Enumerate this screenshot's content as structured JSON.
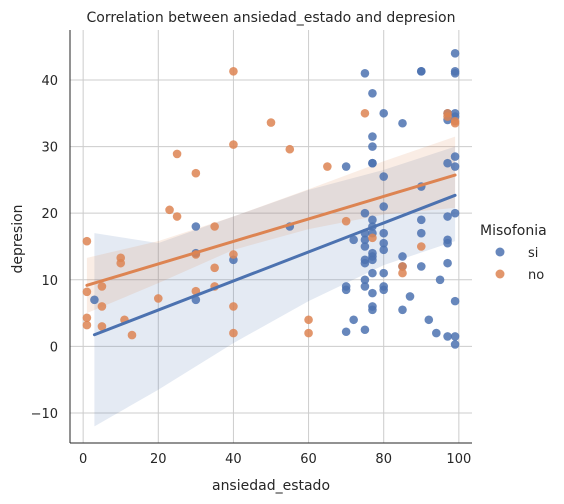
{
  "chart_data": {
    "type": "scatter",
    "title": "Correlation between ansiedad_estado and depresion",
    "xlabel": "ansiedad_estado",
    "ylabel": "depresion",
    "xlim": [
      -3.5,
      103.5
    ],
    "ylim": [
      -14.5,
      47.5
    ],
    "xticks": [
      0,
      20,
      40,
      60,
      80,
      100
    ],
    "yticks": [
      -10,
      0,
      10,
      20,
      30,
      40
    ],
    "grid": true,
    "legend": {
      "title": "Misofonia",
      "placement": "right"
    },
    "series": [
      {
        "name": "si",
        "color": "#4c72b0",
        "points": [
          [
            3,
            7
          ],
          [
            30,
            18
          ],
          [
            30,
            14
          ],
          [
            30,
            7
          ],
          [
            40,
            13
          ],
          [
            55,
            18
          ],
          [
            70,
            27
          ],
          [
            70,
            9
          ],
          [
            70,
            8.5
          ],
          [
            70,
            2.2
          ],
          [
            72,
            4
          ],
          [
            72,
            16
          ],
          [
            75,
            41
          ],
          [
            75,
            20
          ],
          [
            75,
            17
          ],
          [
            75,
            16
          ],
          [
            75,
            15
          ],
          [
            75,
            13
          ],
          [
            75,
            12.5
          ],
          [
            75,
            10
          ],
          [
            75,
            9
          ],
          [
            75,
            2.5
          ],
          [
            77,
            38
          ],
          [
            77,
            31.5
          ],
          [
            77,
            30
          ],
          [
            77,
            27.5
          ],
          [
            77,
            27.5
          ],
          [
            77,
            19
          ],
          [
            77,
            18
          ],
          [
            77,
            17
          ],
          [
            77,
            14
          ],
          [
            77,
            13.5
          ],
          [
            77,
            13
          ],
          [
            77,
            11
          ],
          [
            77,
            8
          ],
          [
            77,
            6
          ],
          [
            77,
            5.5
          ],
          [
            80,
            35
          ],
          [
            80,
            25.5
          ],
          [
            80,
            21
          ],
          [
            80,
            17
          ],
          [
            80,
            15.5
          ],
          [
            80,
            14.5
          ],
          [
            80,
            11
          ],
          [
            80,
            9
          ],
          [
            80,
            8.5
          ],
          [
            85,
            33.5
          ],
          [
            85,
            13.5
          ],
          [
            85,
            12
          ],
          [
            85,
            5.5
          ],
          [
            87,
            7.5
          ],
          [
            90,
            41.3
          ],
          [
            90,
            41.3
          ],
          [
            90,
            24
          ],
          [
            90,
            19
          ],
          [
            90,
            17
          ],
          [
            90,
            12
          ],
          [
            92,
            4
          ],
          [
            94,
            2
          ],
          [
            95,
            10
          ],
          [
            97,
            35
          ],
          [
            97,
            34
          ],
          [
            97,
            27.5
          ],
          [
            97,
            19.5
          ],
          [
            97,
            16
          ],
          [
            97,
            15.5
          ],
          [
            97,
            12.5
          ],
          [
            97,
            1.5
          ],
          [
            99,
            44
          ],
          [
            99,
            41.3
          ],
          [
            99,
            41
          ],
          [
            99,
            35
          ],
          [
            99,
            34.5
          ],
          [
            99,
            28.5
          ],
          [
            99,
            27
          ],
          [
            99,
            20
          ],
          [
            99,
            6.8
          ],
          [
            99,
            1.5
          ],
          [
            99,
            0.3
          ]
        ],
        "regression": {
          "intercept": 1.1,
          "slope": 0.218
        },
        "ci_lower": [
          [
            3,
            -12
          ],
          [
            20,
            -6.5
          ],
          [
            40,
            0.5
          ],
          [
            60,
            6.8
          ],
          [
            80,
            12.2
          ],
          [
            99,
            15.8
          ]
        ],
        "ci_upper": [
          [
            3,
            17
          ],
          [
            20,
            15.5
          ],
          [
            40,
            19.5
          ],
          [
            60,
            23.5
          ],
          [
            80,
            26.5
          ],
          [
            99,
            30
          ]
        ]
      },
      {
        "name": "no",
        "color": "#dd8452",
        "points": [
          [
            1,
            15.8
          ],
          [
            1,
            8.2
          ],
          [
            1,
            4.3
          ],
          [
            1,
            3.2
          ],
          [
            5,
            9
          ],
          [
            5,
            6
          ],
          [
            5,
            3
          ],
          [
            10,
            13.3
          ],
          [
            10,
            12.5
          ],
          [
            11,
            4
          ],
          [
            13,
            1.7
          ],
          [
            20,
            7.2
          ],
          [
            23,
            20.5
          ],
          [
            25,
            19.5
          ],
          [
            25,
            28.9
          ],
          [
            30,
            26
          ],
          [
            30,
            13.8
          ],
          [
            30,
            8.3
          ],
          [
            35,
            18
          ],
          [
            35,
            11.8
          ],
          [
            35,
            9
          ],
          [
            40,
            41.3
          ],
          [
            40,
            30.3
          ],
          [
            40,
            13.8
          ],
          [
            40,
            6
          ],
          [
            40,
            2
          ],
          [
            50,
            33.6
          ],
          [
            55,
            29.6
          ],
          [
            60,
            4
          ],
          [
            60,
            2
          ],
          [
            65,
            27
          ],
          [
            70,
            18.8
          ],
          [
            75,
            35
          ],
          [
            77,
            16.3
          ],
          [
            85,
            12
          ],
          [
            85,
            11
          ],
          [
            90,
            15
          ],
          [
            97,
            35
          ],
          [
            97,
            34.5
          ],
          [
            99,
            33.8
          ],
          [
            99,
            33.5
          ]
        ],
        "regression": {
          "intercept": 9.0,
          "slope": 0.169
        },
        "ci_lower": [
          [
            1,
            5
          ],
          [
            20,
            9.5
          ],
          [
            40,
            14.5
          ],
          [
            60,
            17.6
          ],
          [
            80,
            19.8
          ],
          [
            99,
            20.8
          ]
        ],
        "ci_upper": [
          [
            1,
            13.3
          ],
          [
            20,
            15.8
          ],
          [
            40,
            19.5
          ],
          [
            60,
            23.6
          ],
          [
            80,
            27.8
          ],
          [
            99,
            31.5
          ]
        ]
      }
    ]
  }
}
